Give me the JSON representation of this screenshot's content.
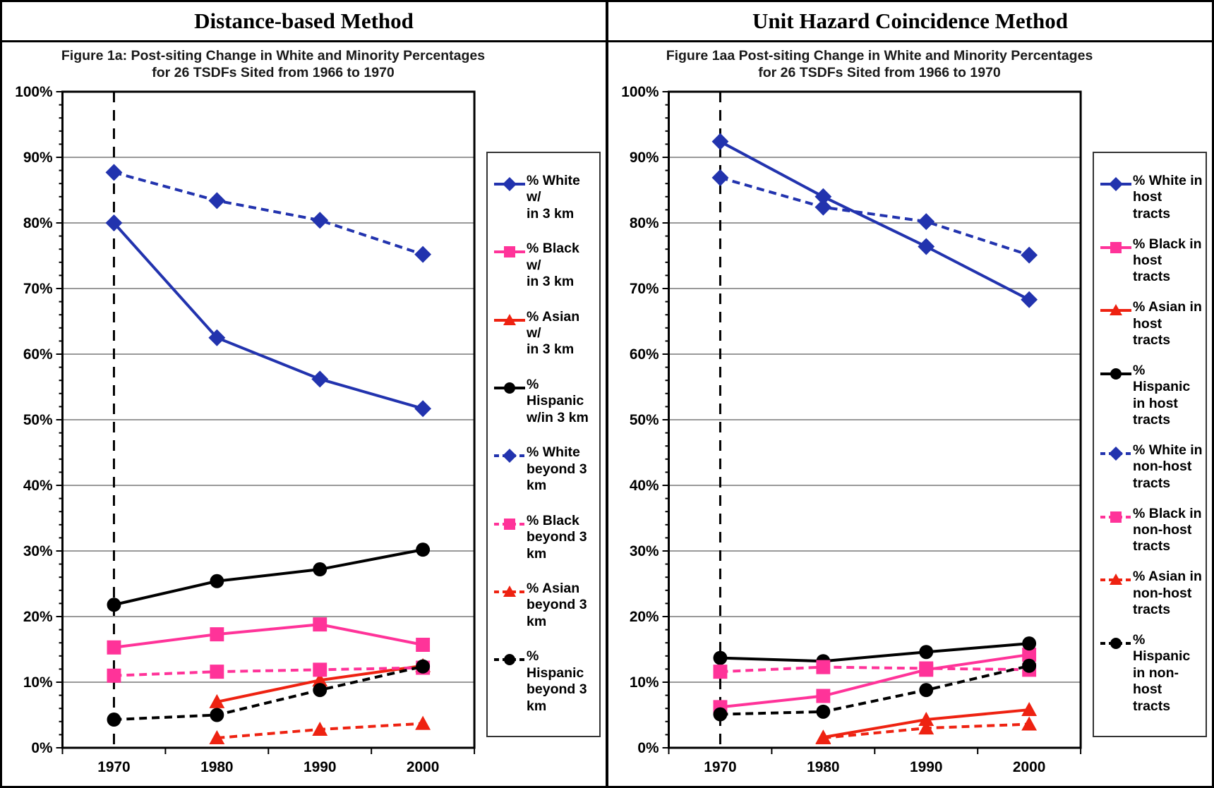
{
  "chart_data": [
    {
      "type": "line",
      "panel_title": "Distance-based Method",
      "title": "Figure 1a: Post-siting Change in White and Minority Percentages",
      "subtitle": "for 26 TSDFs Sited from 1966 to 1970",
      "categories": [
        "1970",
        "1980",
        "1990",
        "2000"
      ],
      "xlabel": "",
      "ylabel": "",
      "ylim": [
        0,
        100
      ],
      "ytick_labels": [
        "0%",
        "10%",
        "20%",
        "30%",
        "40%",
        "50%",
        "60%",
        "70%",
        "80%",
        "90%",
        "100%"
      ],
      "grid": true,
      "legend_position": "right",
      "vline_at_category": "1970",
      "colors": {
        "white_series": "#2233AE",
        "black_series": "#FF3399",
        "asian_series": "#EE2211",
        "hispanic_series": "#000000"
      },
      "series": [
        {
          "name": "% White w/\nin 3 km",
          "color": "#2233AE",
          "dash": "solid",
          "marker": "diamond",
          "values": [
            80.0,
            62.5,
            56.2,
            51.7
          ]
        },
        {
          "name": "% Black w/\nin 3 km",
          "color": "#FF3399",
          "dash": "solid",
          "marker": "square",
          "values": [
            15.3,
            17.3,
            18.8,
            15.7
          ]
        },
        {
          "name": "% Asian w/\nin 3 km",
          "color": "#EE2211",
          "dash": "solid",
          "marker": "triangle",
          "values": [
            null,
            7.0,
            10.3,
            12.5
          ]
        },
        {
          "name": "% Hispanic\nw/in 3 km",
          "color": "#000000",
          "dash": "solid",
          "marker": "circle",
          "values": [
            21.8,
            25.4,
            27.2,
            30.2
          ]
        },
        {
          "name": "% White\nbeyond 3\nkm",
          "color": "#2233AE",
          "dash": "dashed",
          "marker": "diamond",
          "values": [
            87.7,
            83.4,
            80.4,
            75.2
          ]
        },
        {
          "name": "% Black\nbeyond 3\nkm",
          "color": "#FF3399",
          "dash": "dashed",
          "marker": "square",
          "values": [
            11.0,
            11.6,
            11.9,
            12.2
          ]
        },
        {
          "name": "% Asian\nbeyond 3\nkm",
          "color": "#EE2211",
          "dash": "dashed",
          "marker": "triangle",
          "values": [
            null,
            1.5,
            2.8,
            3.7
          ]
        },
        {
          "name": "% Hispanic\nbeyond 3\nkm",
          "color": "#000000",
          "dash": "dashed",
          "marker": "circle",
          "values": [
            4.3,
            5.0,
            8.8,
            12.4
          ]
        }
      ]
    },
    {
      "type": "line",
      "panel_title": "Unit Hazard Coincidence Method",
      "title": "Figure 1aa Post-siting Change in White and Minority Percentages",
      "subtitle": "for 26 TSDFs Sited from 1966 to 1970",
      "categories": [
        "1970",
        "1980",
        "1990",
        "2000"
      ],
      "xlabel": "",
      "ylabel": "",
      "ylim": [
        0,
        100
      ],
      "ytick_labels": [
        "0%",
        "10%",
        "20%",
        "30%",
        "40%",
        "50%",
        "60%",
        "70%",
        "80%",
        "90%",
        "100%"
      ],
      "grid": true,
      "legend_position": "right",
      "vline_at_category": "1970",
      "colors": {
        "white_series": "#2233AE",
        "black_series": "#FF3399",
        "asian_series": "#EE2211",
        "hispanic_series": "#000000"
      },
      "series": [
        {
          "name": "% White in\nhost tracts",
          "color": "#2233AE",
          "dash": "solid",
          "marker": "diamond",
          "values": [
            92.4,
            84.0,
            76.4,
            68.3
          ]
        },
        {
          "name": "% Black in\nhost tracts",
          "color": "#FF3399",
          "dash": "solid",
          "marker": "square",
          "values": [
            6.2,
            7.9,
            11.9,
            14.2
          ]
        },
        {
          "name": "% Asian in\nhost tracts",
          "color": "#EE2211",
          "dash": "solid",
          "marker": "triangle",
          "values": [
            null,
            1.6,
            4.3,
            5.8
          ]
        },
        {
          "name": "% Hispanic\nin host\ntracts",
          "color": "#000000",
          "dash": "solid",
          "marker": "circle",
          "values": [
            13.7,
            13.2,
            14.6,
            15.9
          ]
        },
        {
          "name": "% White in\nnon-host\ntracts",
          "color": "#2233AE",
          "dash": "dashed",
          "marker": "diamond",
          "values": [
            86.9,
            82.4,
            80.2,
            75.1
          ]
        },
        {
          "name": "% Black in\nnon-host\ntracts",
          "color": "#FF3399",
          "dash": "dashed",
          "marker": "square",
          "values": [
            11.6,
            12.3,
            12.1,
            11.9
          ]
        },
        {
          "name": "% Asian in\nnon-host\ntracts",
          "color": "#EE2211",
          "dash": "dashed",
          "marker": "triangle",
          "values": [
            null,
            1.5,
            3.0,
            3.6
          ]
        },
        {
          "name": "% Hispanic\nin non-\nhost tracts",
          "color": "#000000",
          "dash": "dashed",
          "marker": "circle",
          "values": [
            5.1,
            5.5,
            8.8,
            12.5
          ]
        }
      ]
    }
  ]
}
